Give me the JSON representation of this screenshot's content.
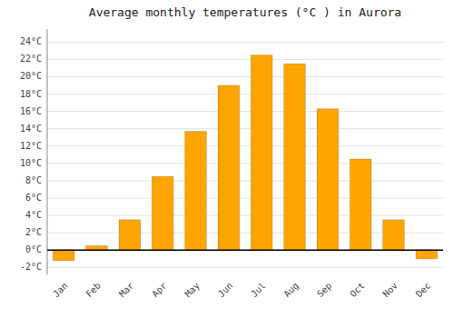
{
  "chart_data": {
    "type": "bar",
    "title": "Average monthly temperatures (°C ) in Aurora",
    "categories": [
      "Jan",
      "Feb",
      "Mar",
      "Apr",
      "May",
      "Jun",
      "Jul",
      "Aug",
      "Sep",
      "Oct",
      "Nov",
      "Dec"
    ],
    "values": [
      -1.2,
      0.5,
      3.5,
      8.5,
      13.7,
      19.0,
      22.5,
      21.5,
      16.3,
      10.5,
      3.5,
      -1.0
    ],
    "color": "#FFA500",
    "ylim": [
      -2.8,
      25.5
    ],
    "yticks": [
      {
        "value": -2,
        "label": "-2°C"
      },
      {
        "value": 0,
        "label": "0°C"
      },
      {
        "value": 2,
        "label": "2°C"
      },
      {
        "value": 4,
        "label": "4°C"
      },
      {
        "value": 6,
        "label": "6°C"
      },
      {
        "value": 8,
        "label": "8°C"
      },
      {
        "value": 10,
        "label": "10°C"
      },
      {
        "value": 12,
        "label": "12°C"
      },
      {
        "value": 14,
        "label": "14°C"
      },
      {
        "value": 16,
        "label": "16°C"
      },
      {
        "value": 18,
        "label": "18°C"
      },
      {
        "value": 20,
        "label": "20°C"
      },
      {
        "value": 22,
        "label": "22°C"
      },
      {
        "value": 24,
        "label": "24°C"
      }
    ],
    "grid": true
  }
}
